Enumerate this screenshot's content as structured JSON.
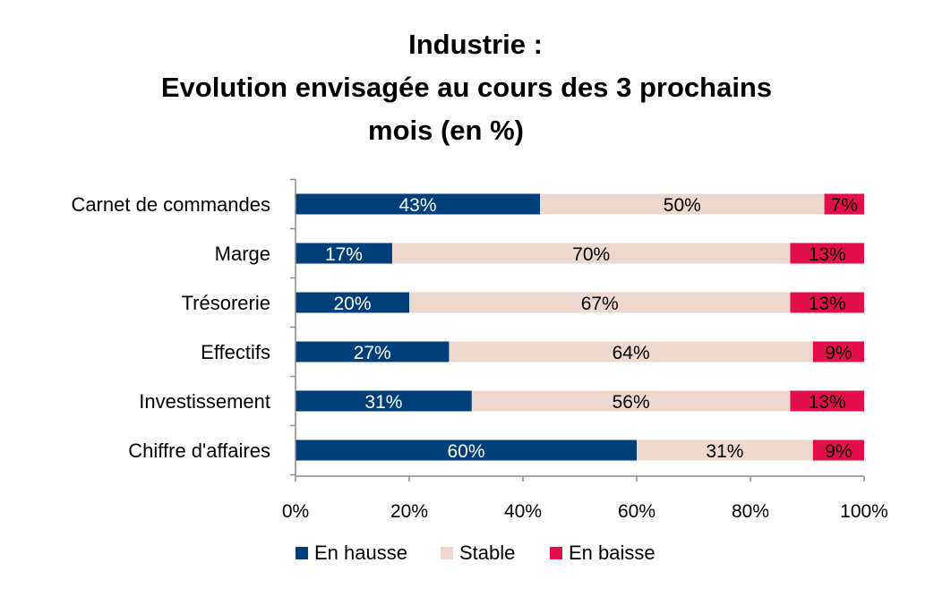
{
  "chart_data": {
    "type": "bar",
    "orientation": "horizontal",
    "stacked": "percent",
    "title_lines": [
      "Industrie :",
      "Evolution envisagée au cours des 3 prochains",
      "mois (en %)"
    ],
    "categories": [
      "Carnet de commandes",
      "Marge",
      "Trésorerie",
      "Effectifs",
      "Investissement",
      "Chiffre d'affaires"
    ],
    "series": [
      {
        "name": "En hausse",
        "color": "#003f7a",
        "label_color": "#ffffff",
        "values": [
          43,
          17,
          20,
          27,
          31,
          60
        ],
        "labels": [
          "43%",
          "17%",
          "20%",
          "27%",
          "31%",
          "60%"
        ]
      },
      {
        "name": "Stable",
        "color": "#ecd8cc",
        "label_color": "#000000",
        "values": [
          50,
          70,
          67,
          64,
          56,
          31
        ],
        "labels": [
          "50%",
          "70%",
          "67%",
          "64%",
          "56%",
          "31%"
        ]
      },
      {
        "name": "En baisse",
        "color": "#e30f4b",
        "label_color": "#000000",
        "values": [
          7,
          13,
          13,
          9,
          13,
          9
        ],
        "labels": [
          "7%",
          "13%",
          "13%",
          "9%",
          "13%",
          "9%"
        ]
      }
    ],
    "xlim": [
      0,
      100
    ],
    "xticks": [
      0,
      20,
      40,
      60,
      80,
      100
    ],
    "xtick_labels": [
      "0%",
      "20%",
      "40%",
      "60%",
      "80%",
      "100%"
    ],
    "grid": false,
    "legend_position": "bottom"
  }
}
